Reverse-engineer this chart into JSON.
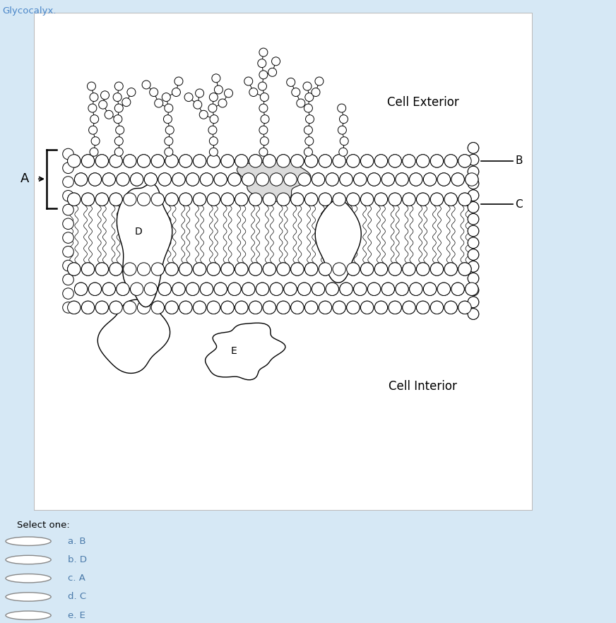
{
  "title": "Glycocalyx.",
  "title_color": "#4a86c8",
  "background_color": "#d6e8f5",
  "panel_background": "#ffffff",
  "label_A": "A",
  "label_B": "B",
  "label_C": "C",
  "label_D": "D",
  "label_E": "E",
  "label_cell_exterior": "Cell Exterior",
  "label_cell_interior": "Cell Interior",
  "select_one_text": "Select one:",
  "options": [
    "a. B",
    "b. D",
    "c. A",
    "d. C",
    "e. E"
  ],
  "fig_width": 8.72,
  "fig_height": 8.82,
  "dpi": 100
}
